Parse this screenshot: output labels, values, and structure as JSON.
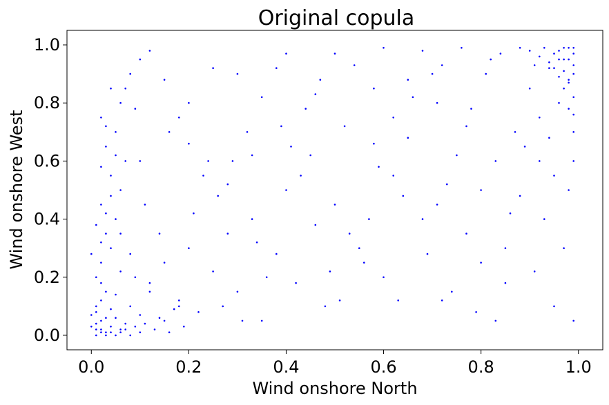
{
  "chart_data": {
    "type": "scatter",
    "title": "Original copula",
    "xlabel": "Wind onshore North",
    "ylabel": "Wind onshore West",
    "xlim": [
      -0.05,
      1.05
    ],
    "ylim": [
      -0.05,
      1.05
    ],
    "xticks": [
      0.0,
      0.2,
      0.4,
      0.6,
      0.8,
      1.0
    ],
    "yticks": [
      0.0,
      0.2,
      0.4,
      0.6,
      0.8,
      1.0
    ],
    "xtick_labels": [
      "0.0",
      "0.2",
      "0.4",
      "0.6",
      "0.8",
      "1.0"
    ],
    "ytick_labels": [
      "0.0",
      "0.2",
      "0.4",
      "0.6",
      "0.8",
      "1.0"
    ],
    "grid": false,
    "marker_color": "#0000ff",
    "series": [
      {
        "points": [
          [
            0.01,
            0.02
          ],
          [
            0.02,
            0.05
          ],
          [
            0.03,
            0.01
          ],
          [
            0.01,
            0.08
          ],
          [
            0.04,
            0.03
          ],
          [
            0.02,
            0.12
          ],
          [
            0.05,
            0.06
          ],
          [
            0.03,
            0.15
          ],
          [
            0.06,
            0.02
          ],
          [
            0.01,
            0.2
          ],
          [
            0.08,
            0.1
          ],
          [
            0.02,
            0.25
          ],
          [
            0.07,
            0.04
          ],
          [
            0.04,
            0.3
          ],
          [
            0.1,
            0.07
          ],
          [
            0.03,
            0.35
          ],
          [
            0.12,
            0.15
          ],
          [
            0.05,
            0.4
          ],
          [
            0.09,
            0.2
          ],
          [
            0.02,
            0.45
          ],
          [
            0.15,
            0.05
          ],
          [
            0.06,
            0.5
          ],
          [
            0.18,
            0.12
          ],
          [
            0.04,
            0.55
          ],
          [
            0.2,
            0.3
          ],
          [
            0.07,
            0.6
          ],
          [
            0.22,
            0.08
          ],
          [
            0.03,
            0.65
          ],
          [
            0.25,
            0.22
          ],
          [
            0.05,
            0.7
          ],
          [
            0.28,
            0.35
          ],
          [
            0.02,
            0.75
          ],
          [
            0.3,
            0.15
          ],
          [
            0.06,
            0.8
          ],
          [
            0.33,
            0.4
          ],
          [
            0.04,
            0.85
          ],
          [
            0.35,
            0.05
          ],
          [
            0.08,
            0.9
          ],
          [
            0.38,
            0.28
          ],
          [
            0.1,
            0.95
          ],
          [
            0.4,
            0.5
          ],
          [
            0.12,
            0.98
          ],
          [
            0.42,
            0.18
          ],
          [
            0.15,
            0.88
          ],
          [
            0.45,
            0.62
          ],
          [
            0.18,
            0.75
          ],
          [
            0.48,
            0.1
          ],
          [
            0.2,
            0.66
          ],
          [
            0.5,
            0.45
          ],
          [
            0.23,
            0.55
          ],
          [
            0.52,
            0.72
          ],
          [
            0.26,
            0.48
          ],
          [
            0.55,
            0.3
          ],
          [
            0.29,
            0.6
          ],
          [
            0.58,
            0.85
          ],
          [
            0.32,
            0.7
          ],
          [
            0.6,
            0.2
          ],
          [
            0.35,
            0.82
          ],
          [
            0.62,
            0.55
          ],
          [
            0.38,
            0.92
          ],
          [
            0.65,
            0.68
          ],
          [
            0.41,
            0.65
          ],
          [
            0.68,
            0.4
          ],
          [
            0.44,
            0.78
          ],
          [
            0.7,
            0.9
          ],
          [
            0.47,
            0.88
          ],
          [
            0.72,
            0.12
          ],
          [
            0.5,
            0.97
          ],
          [
            0.75,
            0.62
          ],
          [
            0.53,
            0.35
          ],
          [
            0.78,
            0.78
          ],
          [
            0.56,
            0.25
          ],
          [
            0.8,
            0.5
          ],
          [
            0.59,
            0.58
          ],
          [
            0.82,
            0.95
          ],
          [
            0.62,
            0.75
          ],
          [
            0.85,
            0.3
          ],
          [
            0.65,
            0.88
          ],
          [
            0.87,
            0.7
          ],
          [
            0.68,
            0.98
          ],
          [
            0.9,
            0.85
          ],
          [
            0.71,
            0.45
          ],
          [
            0.92,
            0.6
          ],
          [
            0.74,
            0.15
          ],
          [
            0.94,
            0.92
          ],
          [
            0.77,
            0.35
          ],
          [
            0.96,
            0.8
          ],
          [
            0.8,
            0.25
          ],
          [
            0.97,
            0.95
          ],
          [
            0.83,
            0.05
          ],
          [
            0.98,
            0.88
          ],
          [
            0.86,
            0.42
          ],
          [
            0.99,
            0.97
          ],
          [
            0.89,
            0.65
          ],
          [
            0.99,
            0.9
          ],
          [
            0.92,
            0.75
          ],
          [
            0.98,
            0.99
          ],
          [
            0.95,
            0.55
          ],
          [
            0.97,
            0.85
          ],
          [
            0.99,
            0.6
          ],
          [
            0.99,
            0.99
          ],
          [
            0.98,
            0.95
          ],
          [
            0.96,
            0.98
          ],
          [
            0.99,
            0.93
          ],
          [
            0.97,
            0.91
          ],
          [
            0.95,
            0.97
          ],
          [
            0.98,
            0.87
          ],
          [
            0.93,
            0.99
          ],
          [
            0.99,
            0.82
          ],
          [
            0.94,
            0.94
          ],
          [
            0.96,
            0.89
          ],
          [
            0.92,
            0.96
          ],
          [
            0.99,
            0.76
          ],
          [
            0.97,
            0.99
          ],
          [
            0.9,
            0.98
          ],
          [
            0.95,
            0.92
          ],
          [
            0.98,
            0.78
          ],
          [
            0.91,
            0.93
          ],
          [
            0.99,
            0.7
          ],
          [
            0.96,
            0.95
          ],
          [
            0.01,
            0.0
          ],
          [
            0.02,
            0.01
          ],
          [
            0.0,
            0.03
          ],
          [
            0.03,
            0.0
          ],
          [
            0.01,
            0.04
          ],
          [
            0.04,
            0.01
          ],
          [
            0.02,
            0.02
          ],
          [
            0.05,
            0.0
          ],
          [
            0.0,
            0.07
          ],
          [
            0.06,
            0.01
          ],
          [
            0.01,
            0.1
          ],
          [
            0.07,
            0.02
          ],
          [
            0.03,
            0.06
          ],
          [
            0.08,
            0.0
          ],
          [
            0.02,
            0.18
          ],
          [
            0.09,
            0.03
          ],
          [
            0.04,
            0.09
          ],
          [
            0.1,
            0.01
          ],
          [
            0.0,
            0.28
          ],
          [
            0.11,
            0.04
          ],
          [
            0.02,
            0.32
          ],
          [
            0.13,
            0.02
          ],
          [
            0.05,
            0.14
          ],
          [
            0.14,
            0.06
          ],
          [
            0.01,
            0.38
          ],
          [
            0.16,
            0.01
          ],
          [
            0.03,
            0.42
          ],
          [
            0.17,
            0.09
          ],
          [
            0.06,
            0.22
          ],
          [
            0.19,
            0.03
          ],
          [
            0.1,
            0.6
          ],
          [
            0.2,
            0.8
          ],
          [
            0.3,
            0.9
          ],
          [
            0.4,
            0.97
          ],
          [
            0.25,
            0.92
          ],
          [
            0.33,
            0.62
          ],
          [
            0.46,
            0.83
          ],
          [
            0.54,
            0.93
          ],
          [
            0.6,
            0.99
          ],
          [
            0.66,
            0.82
          ],
          [
            0.72,
            0.93
          ],
          [
            0.76,
            0.99
          ],
          [
            0.81,
            0.9
          ],
          [
            0.84,
            0.97
          ],
          [
            0.88,
            0.99
          ],
          [
            0.57,
            0.4
          ],
          [
            0.43,
            0.55
          ],
          [
            0.36,
            0.2
          ],
          [
            0.27,
            0.1
          ],
          [
            0.14,
            0.35
          ],
          [
            0.11,
            0.45
          ],
          [
            0.24,
            0.6
          ],
          [
            0.31,
            0.05
          ],
          [
            0.49,
            0.22
          ],
          [
            0.63,
            0.12
          ],
          [
            0.69,
            0.28
          ],
          [
            0.73,
            0.52
          ],
          [
            0.79,
            0.08
          ],
          [
            0.85,
            0.18
          ],
          [
            0.91,
            0.22
          ],
          [
            0.93,
            0.4
          ],
          [
            0.95,
            0.1
          ],
          [
            0.97,
            0.3
          ],
          [
            0.98,
            0.5
          ],
          [
            0.99,
            0.05
          ],
          [
            0.94,
            0.68
          ],
          [
            0.88,
            0.48
          ],
          [
            0.83,
            0.6
          ],
          [
            0.77,
            0.72
          ],
          [
            0.71,
            0.8
          ],
          [
            0.64,
            0.48
          ],
          [
            0.58,
            0.66
          ],
          [
            0.51,
            0.12
          ],
          [
            0.46,
            0.38
          ],
          [
            0.39,
            0.72
          ],
          [
            0.34,
            0.32
          ],
          [
            0.28,
            0.52
          ],
          [
            0.21,
            0.42
          ],
          [
            0.16,
            0.7
          ],
          [
            0.09,
            0.78
          ],
          [
            0.07,
            0.85
          ],
          [
            0.05,
            0.62
          ],
          [
            0.03,
            0.72
          ],
          [
            0.02,
            0.58
          ],
          [
            0.04,
            0.48
          ],
          [
            0.06,
            0.35
          ],
          [
            0.08,
            0.28
          ],
          [
            0.12,
            0.18
          ],
          [
            0.15,
            0.25
          ],
          [
            0.18,
            0.1
          ]
        ]
      }
    ]
  }
}
